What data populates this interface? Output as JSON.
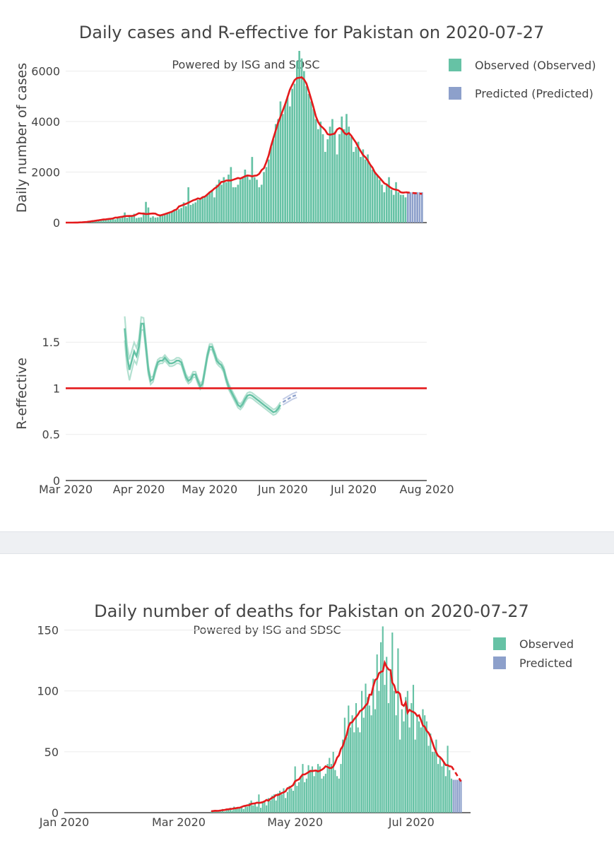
{
  "chart_data": [
    {
      "type": "bar",
      "title": "Daily cases and R-effective for Pakistan on 2020-07-27",
      "subtitle": "Powered by ISG and SDSC",
      "ylabel": "Daily number of cases",
      "ylabel2": "R-effective",
      "ylim": [
        0,
        6800
      ],
      "y_ticks": [
        0,
        2000,
        4000,
        6000
      ],
      "y_tick_labels": [
        "0",
        "2000",
        "4000",
        "6000"
      ],
      "r_ylim": [
        0,
        1.9
      ],
      "r_ticks": [
        0,
        0.5,
        1,
        1.5
      ],
      "r_tick_labels": [
        "0",
        "0.5",
        "1",
        "1.5"
      ],
      "x_start": "2020-03-01",
      "x_end": "2020-08-01",
      "x_tick_labels": [
        "Mar 2020",
        "Apr 2020",
        "May 2020",
        "Jun 2020",
        "Jul 2020",
        "Aug 2020"
      ],
      "legend": [
        "Observed (Observed)",
        "Predicted (Predicted)"
      ],
      "observed_start": "2020-03-01",
      "observed": [
        0,
        0,
        0,
        0,
        0,
        0,
        0,
        5,
        10,
        20,
        30,
        40,
        60,
        80,
        110,
        130,
        100,
        150,
        140,
        160,
        170,
        130,
        200,
        180,
        250,
        400,
        190,
        300,
        280,
        350,
        180,
        200,
        210,
        400,
        820,
        600,
        200,
        250,
        200,
        210,
        300,
        280,
        350,
        350,
        400,
        420,
        500,
        480,
        530,
        580,
        800,
        650,
        1400,
        700,
        750,
        800,
        900,
        950,
        1000,
        1050,
        1100,
        1200,
        1300,
        1000,
        1500,
        1700,
        1500,
        1800,
        1600,
        1900,
        2200,
        1400,
        1400,
        1500,
        1700,
        1800,
        2100,
        1900,
        1700,
        2600,
        1800,
        1700,
        1400,
        1500,
        2000,
        2200,
        2500,
        3000,
        3300,
        3900,
        4100,
        4800,
        4300,
        4700,
        5000,
        4600,
        5300,
        5500,
        6400,
        6800,
        6500,
        6000,
        5400,
        5100,
        4800,
        4500,
        4100,
        3700,
        4000,
        3500,
        2800,
        3300,
        3800,
        4100,
        3600,
        2700,
        3500,
        4200,
        3700,
        4300,
        3800,
        3400,
        2800,
        3000,
        3200,
        2600,
        2900,
        2500,
        2700,
        2300,
        2100,
        2000,
        1900,
        1700,
        1500,
        1200,
        1500,
        1800,
        1300,
        1100,
        1600,
        1200,
        1100,
        1100,
        1000
      ],
      "predicted_days": 7,
      "predicted_value": 1200,
      "r_effective_start": "2020-03-26",
      "r_effective": [
        1.65,
        1.35,
        1.2,
        1.3,
        1.4,
        1.35,
        1.45,
        1.7,
        1.7,
        1.45,
        1.2,
        1.08,
        1.1,
        1.2,
        1.28,
        1.3,
        1.3,
        1.33,
        1.3,
        1.27,
        1.27,
        1.28,
        1.3,
        1.3,
        1.28,
        1.2,
        1.12,
        1.08,
        1.1,
        1.15,
        1.15,
        1.08,
        1.02,
        1.05,
        1.2,
        1.35,
        1.45,
        1.45,
        1.38,
        1.3,
        1.27,
        1.25,
        1.2,
        1.1,
        1.02,
        0.97,
        0.92,
        0.87,
        0.82,
        0.8,
        0.83,
        0.88,
        0.92,
        0.93,
        0.92,
        0.9,
        0.88,
        0.86,
        0.84,
        0.82,
        0.8,
        0.78,
        0.76,
        0.74,
        0.75,
        0.78,
        0.82
      ],
      "r_predicted": [
        0.85,
        0.88,
        0.91,
        0.93
      ]
    },
    {
      "type": "bar",
      "title": "Daily number of deaths for Pakistan on 2020-07-27",
      "subtitle": "Powered by ISG and SDSC",
      "ylim": [
        0,
        155
      ],
      "y_ticks": [
        0,
        50,
        100,
        150
      ],
      "y_tick_labels": [
        "0",
        "50",
        "100",
        "150"
      ],
      "x_start": "2020-01-01",
      "x_end": "2020-08-01",
      "x_tick_labels": [
        "Jan 2020",
        "Mar 2020",
        "May 2020",
        "Jul 2020"
      ],
      "legend": [
        "Observed",
        "Predicted"
      ],
      "observed_start": "2020-03-18",
      "observed": [
        1,
        1,
        1,
        1,
        2,
        2,
        3,
        1,
        2,
        3,
        4,
        2,
        5,
        3,
        4,
        4,
        5,
        3,
        6,
        5,
        8,
        10,
        6,
        8,
        5,
        15,
        4,
        8,
        10,
        6,
        12,
        10,
        14,
        15,
        10,
        16,
        18,
        15,
        20,
        12,
        17,
        22,
        20,
        18,
        38,
        22,
        25,
        30,
        40,
        25,
        28,
        39,
        35,
        38,
        30,
        34,
        40,
        38,
        28,
        30,
        32,
        40,
        45,
        40,
        50,
        35,
        30,
        28,
        40,
        60,
        78,
        62,
        88,
        70,
        80,
        66,
        90,
        70,
        66,
        100,
        78,
        106,
        95,
        88,
        80,
        110,
        85,
        130,
        100,
        140,
        153,
        105,
        128,
        90,
        115,
        148,
        100,
        80,
        135,
        60,
        85,
        75,
        95,
        100,
        70,
        90,
        105,
        60,
        80,
        75,
        70,
        85,
        80,
        75,
        55,
        65,
        50,
        50,
        60,
        40,
        45,
        38,
        42,
        30,
        55,
        35,
        28
      ],
      "predicted_days": 5,
      "predicted_value": 27
    }
  ],
  "colors": {
    "observed": "#66c2a5",
    "predicted": "#8da0cb",
    "trend": "#e41a1c",
    "grid": "#ebebeb",
    "text": "#444444"
  }
}
